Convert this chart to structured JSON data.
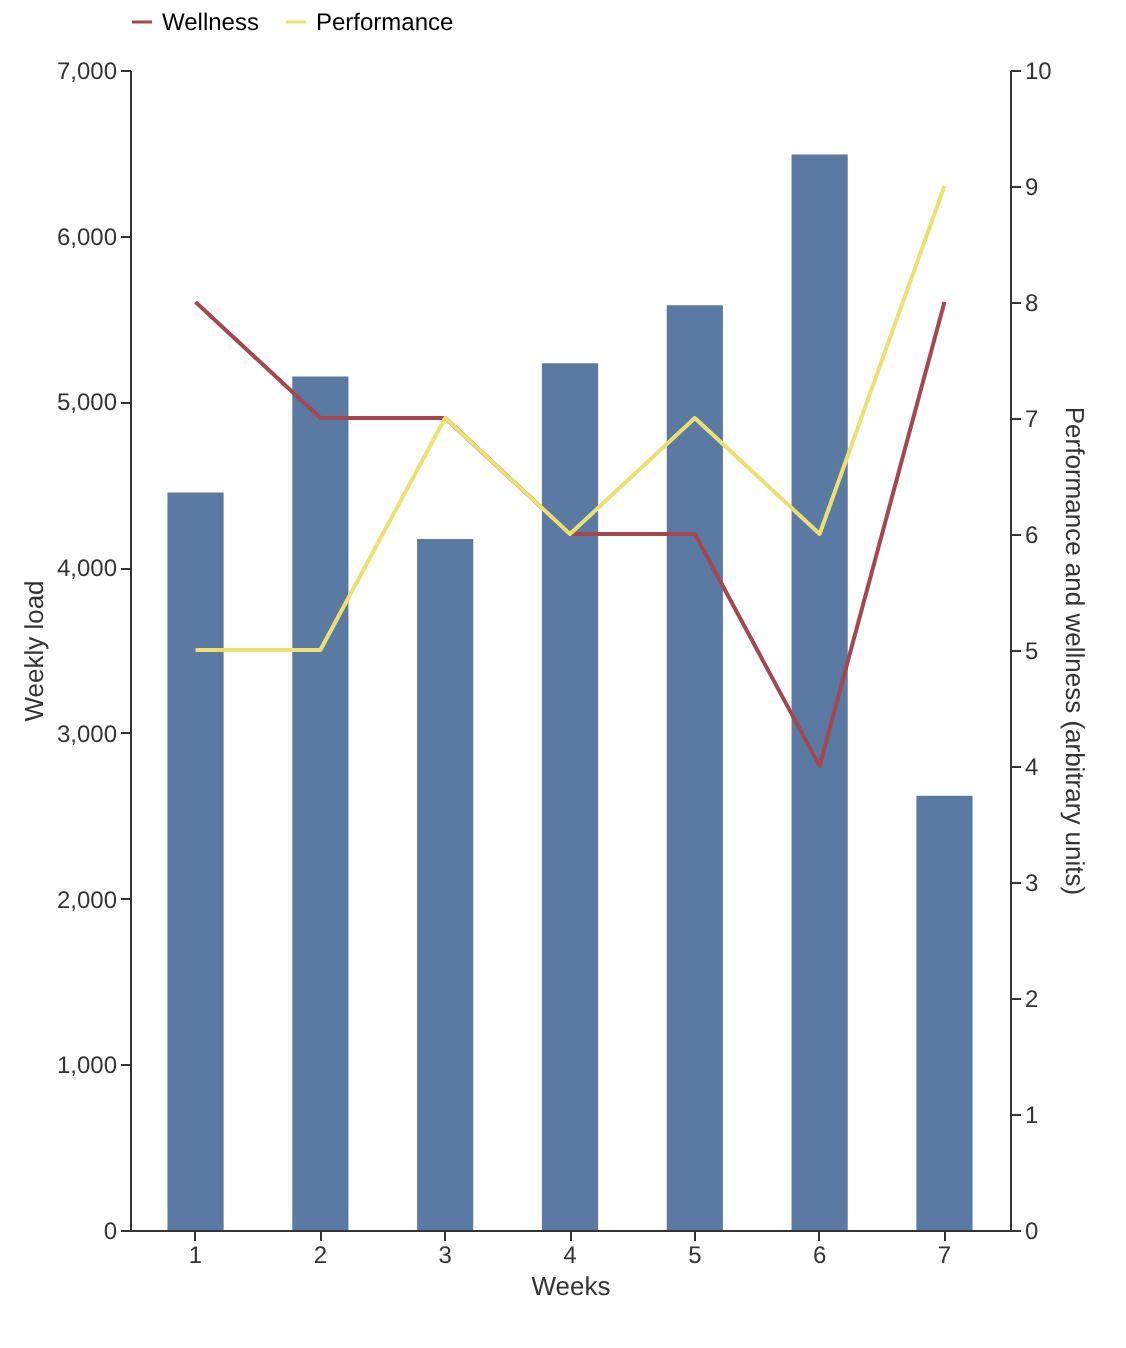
{
  "chart_data": {
    "type": "bar",
    "categories": [
      "1",
      "2",
      "3",
      "4",
      "5",
      "6",
      "7"
    ],
    "xlabel": "Weeks",
    "ylabel": "Weekly load",
    "y2label": "Performance and wellness (arbitrary units)",
    "ylim": [
      0,
      7000
    ],
    "yticks": [
      0,
      {
        "value": 1000,
        "label": "1,000"
      },
      {
        "value": 2000,
        "label": "2,000"
      },
      {
        "value": 3000,
        "label": "3,000"
      },
      {
        "value": 4000,
        "label": "4,000"
      },
      {
        "value": 5000,
        "label": "5,000"
      },
      {
        "value": 6000,
        "label": "6,000"
      },
      {
        "value": 7000,
        "label": "7,000"
      }
    ],
    "y2lim": [
      0,
      10
    ],
    "y2ticks": [
      0,
      1,
      2,
      3,
      4,
      5,
      6,
      7,
      8,
      9,
      10
    ],
    "grid": false,
    "legend": "top",
    "marker": "none",
    "series": [
      {
        "color": "#5a7aa3",
        "values": [
          4450,
          5150,
          4170,
          5230,
          5580,
          6490,
          2620
        ]
      },
      {
        "type": "line",
        "name": "Wellness",
        "axis": "y2",
        "color": "#a5474f",
        "values": [
          8,
          7,
          7,
          6,
          6,
          4,
          8
        ]
      },
      {
        "type": "line",
        "name": "Performance",
        "axis": "y2",
        "color": "#eee070",
        "values": [
          5,
          5,
          7,
          6,
          7,
          6,
          9
        ]
      }
    ]
  }
}
